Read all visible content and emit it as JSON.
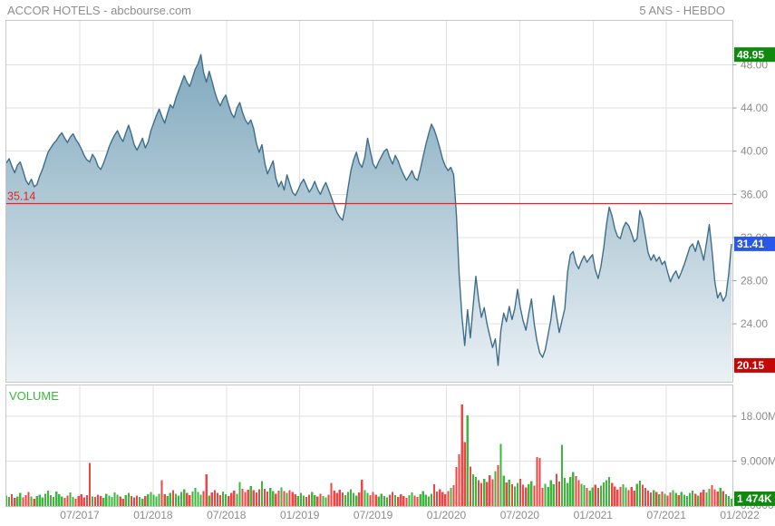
{
  "header": {
    "title": "ACCOR HOTELS - abcbourse.com",
    "period_label": "5 ANS - HEBDO"
  },
  "price_pane": {
    "y_tick_labels": [
      "48.00",
      "44.00",
      "40.00",
      "36.00",
      "32.00",
      "28.00",
      "24.00"
    ],
    "high_badge": "48.95",
    "last_badge": "31.41",
    "low_badge": "20.15",
    "alert_label": "35.14"
  },
  "volume_pane": {
    "label": "VOLUME",
    "y_tick_labels": [
      "18.00M",
      "9.000M",
      "0.0000"
    ],
    "last_badge": "1 474K"
  },
  "colors": {
    "grid": "#e2e2e2",
    "border": "#c6c6c6",
    "axis_text": "#8c8c8c",
    "header_text": "#8e8e8e",
    "price_line": "#3e6e8d",
    "area_top": "#7aa5bb",
    "area_mid": "#b8ceda",
    "area_bottom": "#eaf1f5",
    "alert": "#e62222",
    "up": "#3cb73c",
    "down": "#ef4545",
    "badge_high": "#0f8a0f",
    "badge_last": "#2b57e8",
    "badge_low": "#c40707",
    "badge_volume": "#0f8a0f",
    "badge_text": "#ffffff",
    "volume_label": "#3cb73c"
  },
  "chart_data": {
    "type": "mixed",
    "x_labels": [
      "07/2017",
      "01/2018",
      "07/2018",
      "01/2019",
      "07/2019",
      "01/2020",
      "07/2020",
      "01/2021",
      "07/2021",
      "01/2022"
    ],
    "price": {
      "type": "area",
      "ylabel": "",
      "ylim": [
        18.6,
        52.1
      ],
      "y_gridlines": [
        48,
        44,
        40,
        36,
        32,
        28,
        24
      ],
      "high": 48.95,
      "low": 20.15,
      "last": 31.41,
      "alert_line": 35.14,
      "values": [
        38.9,
        39.3,
        38.6,
        38.0,
        38.7,
        39.0,
        38.2,
        37.3,
        36.9,
        37.4,
        36.7,
        36.9,
        37.7,
        38.3,
        39.1,
        39.9,
        40.3,
        40.7,
        41.0,
        41.4,
        41.7,
        41.2,
        40.8,
        41.3,
        41.6,
        41.1,
        40.7,
        40.2,
        39.6,
        39.2,
        39.0,
        39.7,
        39.3,
        38.6,
        38.3,
        38.9,
        39.6,
        40.4,
        41.0,
        41.5,
        41.9,
        41.3,
        40.9,
        41.7,
        42.4,
        41.6,
        40.6,
        40.1,
        40.6,
        41.2,
        40.3,
        40.8,
        41.9,
        42.6,
        43.3,
        43.9,
        43.2,
        42.6,
        43.5,
        44.3,
        44.0,
        44.9,
        45.6,
        46.3,
        47.0,
        46.4,
        46.0,
        46.8,
        47.6,
        48.1,
        48.95,
        47.3,
        46.4,
        47.4,
        46.5,
        45.5,
        44.7,
        44.2,
        44.8,
        45.2,
        44.3,
        43.5,
        43.1,
        44.0,
        44.5,
        43.6,
        42.9,
        42.5,
        42.9,
        42.1,
        40.7,
        39.9,
        40.6,
        38.9,
        37.9,
        38.5,
        39.1,
        37.5,
        36.7,
        37.2,
        36.4,
        37.8,
        37.0,
        36.2,
        35.9,
        36.4,
        37.0,
        37.4,
        36.8,
        36.2,
        36.6,
        37.2,
        36.5,
        36.0,
        36.6,
        37.1,
        36.4,
        35.7,
        35.0,
        34.3,
        33.9,
        33.6,
        34.8,
        36.6,
        38.2,
        39.2,
        39.9,
        38.9,
        38.5,
        39.4,
        41.2,
        40.0,
        38.8,
        38.4,
        39.0,
        39.5,
        40.0,
        40.2,
        39.4,
        38.8,
        39.6,
        39.1,
        38.4,
        37.8,
        37.3,
        37.7,
        38.2,
        37.5,
        37.3,
        38.3,
        39.5,
        40.6,
        41.6,
        42.5,
        42.0,
        41.2,
        40.3,
        39.3,
        38.6,
        38.2,
        38.5,
        37.8,
        34.0,
        28.5,
        24.6,
        22.0,
        25.3,
        22.7,
        25.6,
        28.4,
        26.2,
        24.6,
        25.5,
        24.0,
        22.9,
        21.8,
        22.6,
        20.15,
        23.4,
        25.0,
        24.2,
        25.6,
        24.4,
        25.4,
        27.2,
        25.5,
        24.3,
        23.4,
        24.9,
        26.3,
        24.0,
        22.4,
        21.3,
        20.9,
        21.6,
        23.0,
        24.4,
        26.6,
        24.8,
        23.2,
        24.3,
        25.4,
        28.8,
        30.4,
        30.7,
        29.6,
        29.1,
        29.8,
        30.3,
        29.7,
        30.1,
        30.4,
        29.0,
        28.2,
        29.3,
        31.0,
        33.2,
        34.8,
        34.0,
        32.8,
        32.1,
        31.9,
        32.9,
        33.4,
        33.1,
        32.4,
        31.6,
        31.9,
        34.5,
        33.7,
        32.1,
        30.6,
        29.9,
        30.4,
        29.8,
        30.2,
        29.5,
        29.8,
        28.8,
        27.9,
        28.5,
        28.9,
        28.2,
        28.8,
        29.5,
        30.3,
        31.1,
        31.4,
        30.7,
        31.7,
        30.9,
        29.9,
        31.5,
        33.2,
        30.8,
        27.9,
        26.4,
        26.9,
        26.1,
        26.6,
        28.6,
        31.41
      ]
    },
    "volume": {
      "type": "bar",
      "ylim_millions": [
        0,
        24.5
      ],
      "y_gridlines_millions": [
        18,
        9
      ],
      "last_volume_millions": 1.474,
      "values_millions": [
        2.1,
        1.8,
        2.4,
        1.6,
        1.9,
        2.6,
        1.7,
        2.2,
        2.8,
        1.9,
        1.5,
        2.0,
        2.3,
        1.7,
        2.5,
        3.1,
        2.2,
        1.8,
        2.9,
        2.4,
        1.9,
        1.6,
        2.1,
        2.7,
        1.8,
        1.5,
        2.0,
        2.4,
        1.7,
        2.2,
        8.6,
        1.9,
        1.8,
        2.3,
        2.0,
        1.6,
        2.5,
        2.1,
        1.8,
        2.7,
        2.3,
        1.9,
        1.5,
        2.2,
        2.6,
        2.0,
        1.7,
        2.1,
        1.8,
        1.5,
        2.0,
        2.4,
        2.8,
        2.3,
        1.9,
        2.5,
        5.2,
        2.4,
        2.0,
        2.6,
        3.2,
        2.5,
        2.1,
        2.8,
        3.4,
        2.6,
        2.2,
        2.9,
        3.6,
        2.8,
        2.3,
        3.0,
        6.4,
        2.1,
        2.7,
        3.2,
        2.6,
        2.2,
        2.9,
        2.4,
        2.0,
        2.6,
        3.1,
        2.5,
        4.8,
        3.5,
        2.8,
        3.3,
        4.0,
        3.2,
        2.7,
        3.4,
        5.0,
        3.5,
        2.9,
        3.6,
        3.0,
        2.5,
        3.1,
        3.7,
        3.0,
        2.6,
        3.2,
        2.8,
        2.4,
        2.0,
        2.6,
        2.1,
        1.8,
        2.3,
        2.8,
        2.2,
        1.9,
        2.5,
        2.0,
        1.7,
        2.3,
        4.6,
        3.1,
        2.6,
        3.3,
        2.7,
        2.2,
        2.8,
        3.4,
        2.6,
        2.1,
        2.7,
        5.3,
        3.2,
        2.6,
        2.2,
        2.8,
        2.3,
        1.9,
        2.5,
        2.0,
        1.7,
        2.3,
        2.8,
        2.2,
        1.8,
        2.4,
        2.0,
        1.6,
        2.2,
        2.7,
        2.1,
        1.8,
        2.4,
        3.0,
        2.3,
        1.9,
        2.5,
        4.4,
        2.9,
        3.4,
        2.8,
        2.4,
        3.0,
        3.6,
        4.2,
        7.8,
        10.4,
        20.4,
        12.8,
        18.2,
        7.9,
        6.4,
        5.8,
        5.2,
        4.6,
        5.5,
        4.8,
        6.2,
        5.4,
        7.0,
        8.2,
        12.5,
        6.1,
        4.7,
        5.3,
        4.4,
        3.9,
        4.6,
        5.5,
        4.3,
        3.7,
        4.4,
        5.0,
        4.1,
        9.8,
        9.6,
        3.6,
        4.5,
        3.8,
        5.2,
        4.4,
        6.5,
        4.9,
        12.3,
        5.6,
        4.6,
        5.8,
        6.8,
        6.0,
        5.2,
        4.5,
        4.2,
        3.6,
        3.1,
        3.7,
        4.3,
        3.6,
        4.1,
        4.7,
        5.2,
        5.8,
        4.6,
        3.9,
        3.3,
        3.8,
        4.4,
        3.7,
        3.2,
        3.8,
        3.1,
        4.5,
        5.1,
        4.3,
        3.6,
        3.1,
        2.7,
        3.2,
        2.8,
        2.4,
        2.9,
        2.5,
        2.1,
        2.7,
        3.2,
        2.6,
        2.2,
        2.8,
        2.3,
        2.0,
        2.6,
        3.1,
        2.5,
        2.1,
        2.7,
        3.3,
        2.7,
        3.5,
        4.2,
        3.4,
        2.9,
        3.6,
        3.0,
        2.4,
        2.0,
        1.474
      ]
    }
  }
}
